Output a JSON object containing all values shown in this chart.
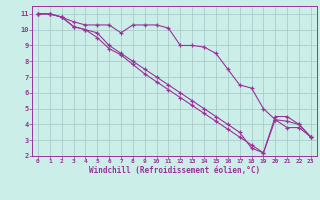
{
  "bg_color": "#cceee8",
  "line_color": "#993399",
  "grid_color": "#aacccc",
  "xlabel": "Windchill (Refroidissement éolien,°C)",
  "xlabel_color": "#993399",
  "xlim": [
    -0.5,
    23.5
  ],
  "ylim": [
    2,
    11.5
  ],
  "xticks": [
    0,
    1,
    2,
    3,
    4,
    5,
    6,
    7,
    8,
    9,
    10,
    11,
    12,
    13,
    14,
    15,
    16,
    17,
    18,
    19,
    20,
    21,
    22,
    23
  ],
  "yticks": [
    2,
    3,
    4,
    5,
    6,
    7,
    8,
    9,
    10,
    11
  ],
  "line1_x": [
    0,
    1,
    2,
    3,
    4,
    5,
    6,
    7,
    8,
    9,
    10,
    11,
    12,
    13,
    14,
    15,
    16,
    17,
    18,
    19,
    20,
    21,
    22,
    23
  ],
  "line1_y": [
    11,
    11,
    10.8,
    10.5,
    10.3,
    10.3,
    10.3,
    9.8,
    10.3,
    10.3,
    10.3,
    10.1,
    9.0,
    9.0,
    8.9,
    8.5,
    7.5,
    6.5,
    6.3,
    5.0,
    4.3,
    3.8,
    3.8,
    3.2
  ],
  "line2_x": [
    0,
    1,
    2,
    3,
    4,
    5,
    6,
    7,
    8,
    9,
    10,
    11,
    12,
    13,
    14,
    15,
    16,
    17,
    18,
    19,
    20,
    21,
    22,
    23
  ],
  "line2_y": [
    11,
    11,
    10.8,
    10.2,
    10.0,
    9.8,
    9.0,
    8.5,
    8.0,
    7.5,
    7.0,
    6.5,
    6.0,
    5.5,
    5.0,
    4.5,
    4.0,
    3.5,
    2.5,
    2.2,
    4.5,
    4.5,
    4.0,
    3.2
  ],
  "line3_x": [
    0,
    1,
    2,
    3,
    4,
    5,
    6,
    7,
    8,
    9,
    10,
    11,
    12,
    13,
    14,
    15,
    16,
    17,
    18,
    19,
    20,
    21,
    22,
    23
  ],
  "line3_y": [
    11,
    11,
    10.8,
    10.2,
    10.0,
    9.5,
    8.8,
    8.4,
    7.8,
    7.2,
    6.7,
    6.2,
    5.7,
    5.2,
    4.7,
    4.2,
    3.7,
    3.2,
    2.7,
    2.2,
    4.3,
    4.2,
    4.0,
    3.2
  ]
}
